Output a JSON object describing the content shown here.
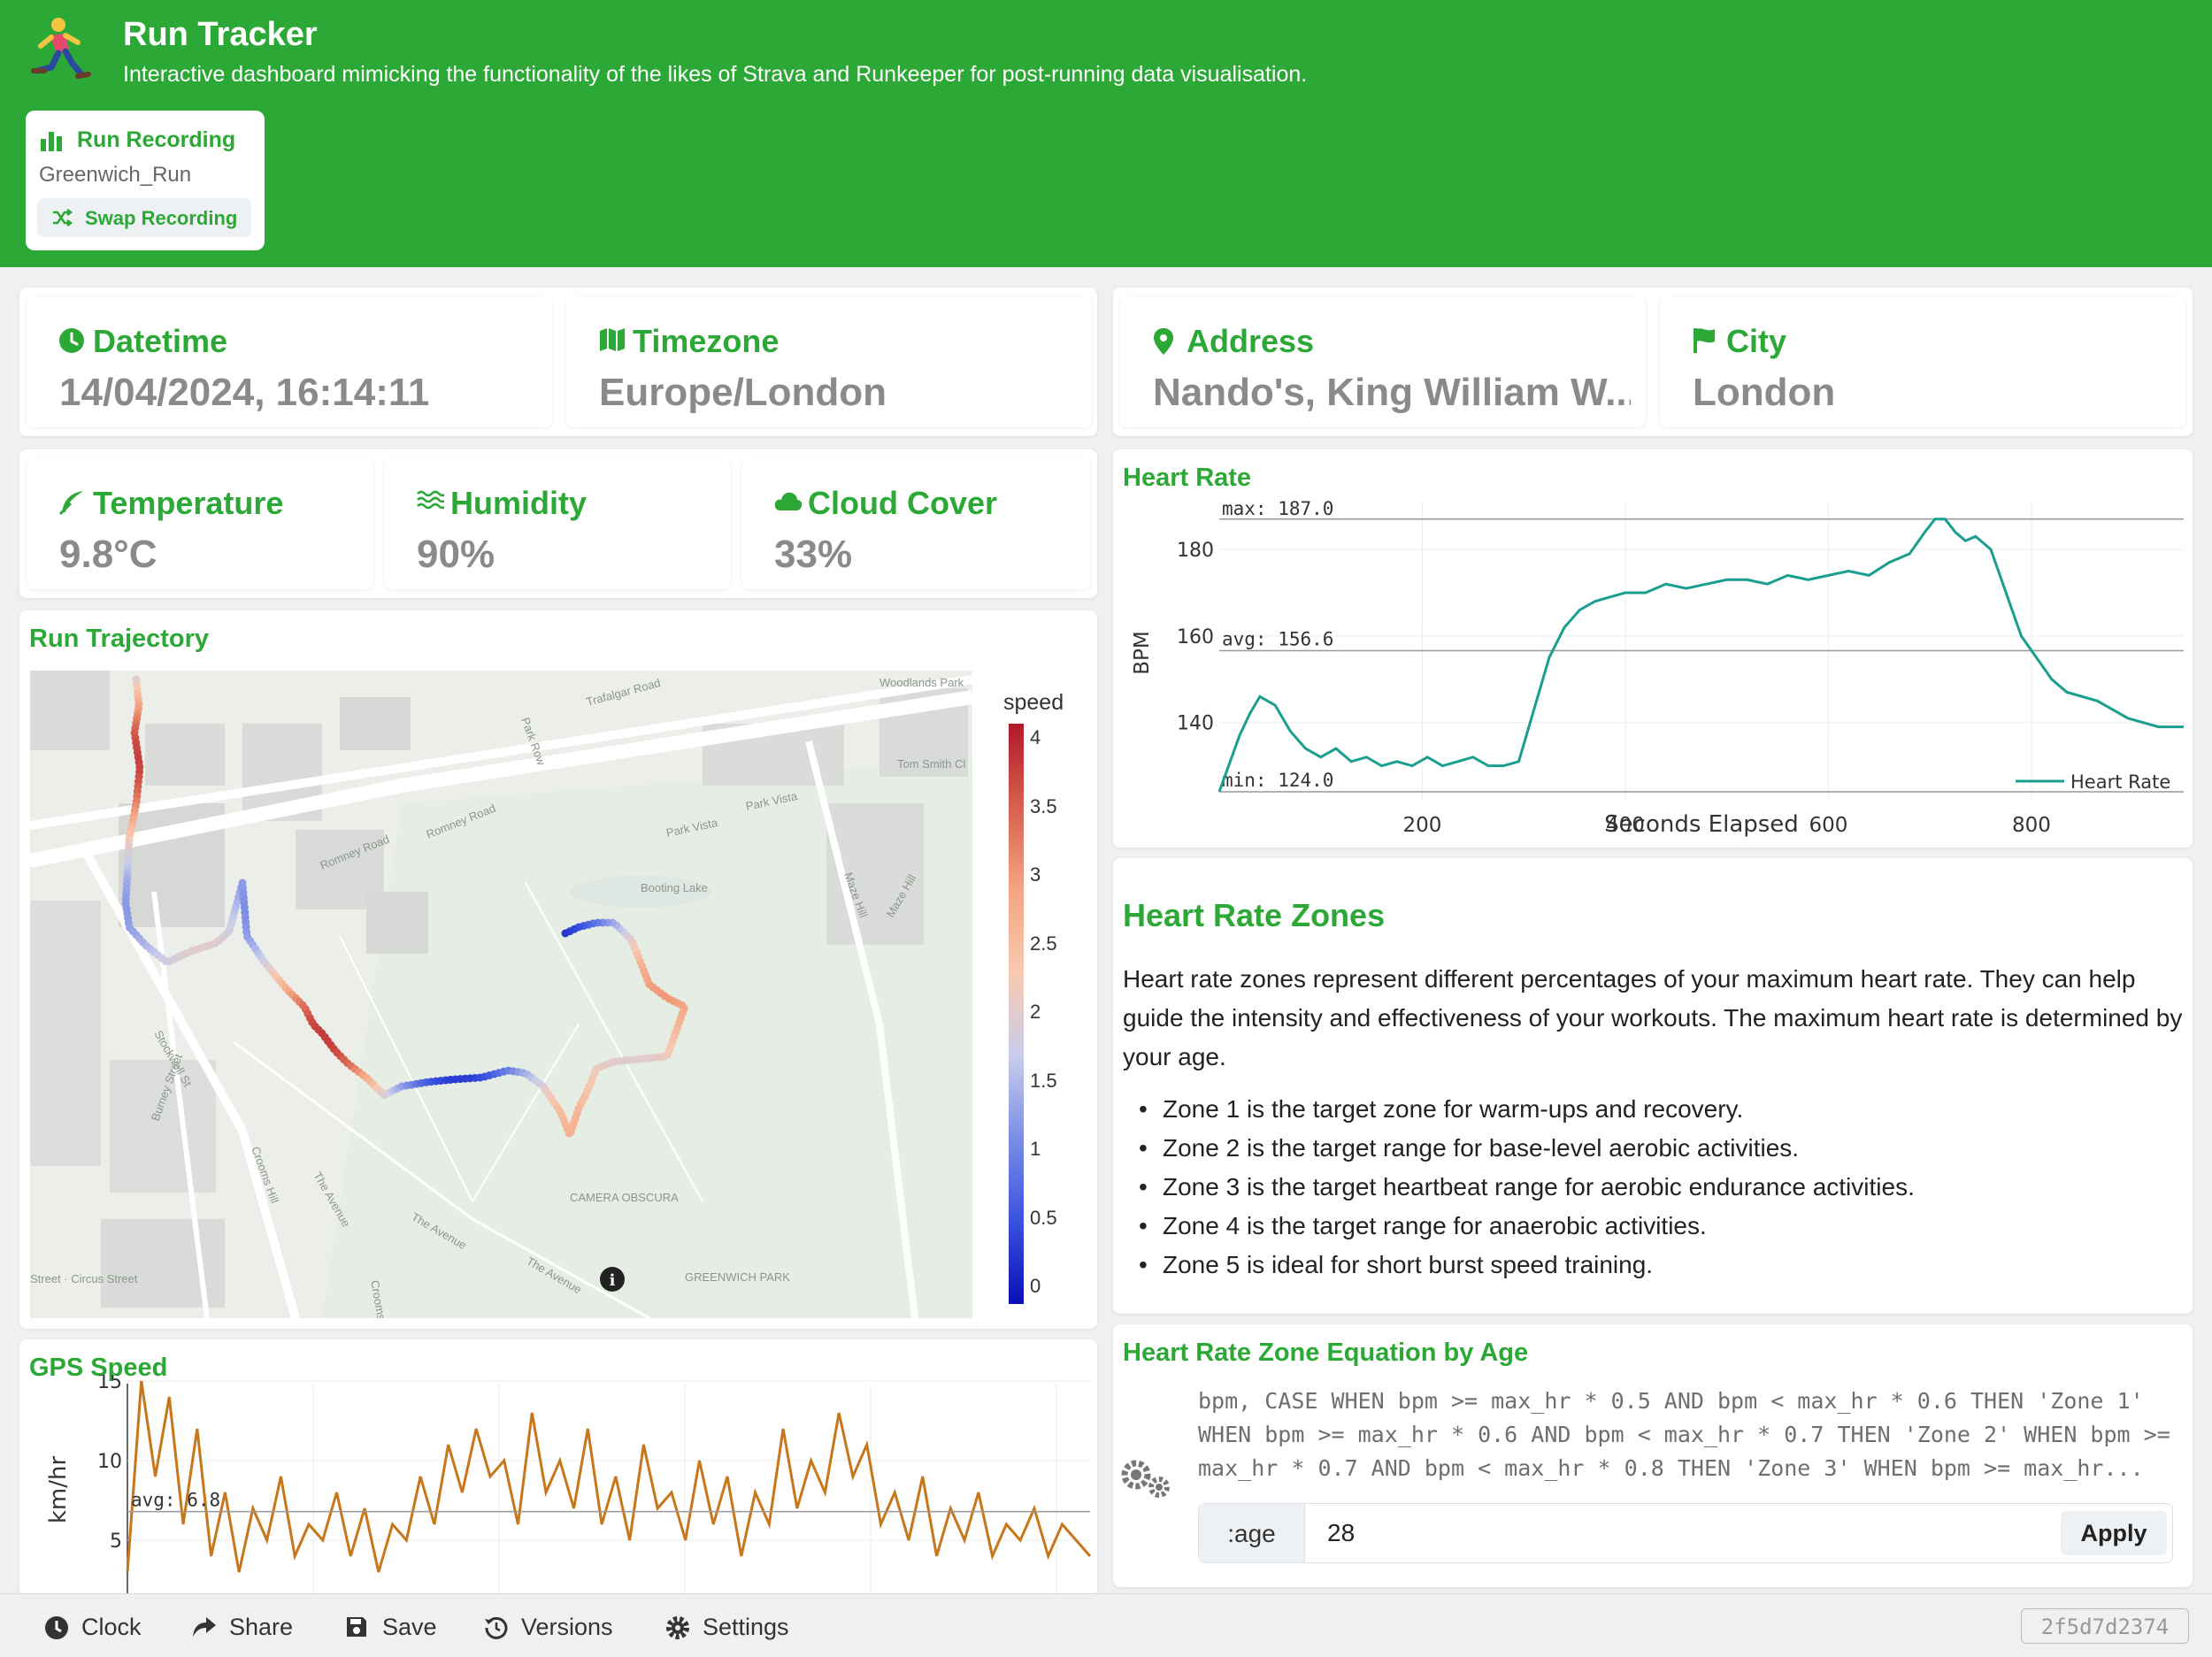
{
  "app": {
    "title": "Run Tracker",
    "subtitle": "Interactive dashboard mimicking the functionality of the likes of Strava and Runkeeper for post-running data visualisation."
  },
  "recording": {
    "title": "Run Recording",
    "name": "Greenwich_Run",
    "swap_label": "Swap Recording"
  },
  "stats": {
    "datetime": {
      "label": "Datetime",
      "value": "14/04/2024, 16:14:11"
    },
    "timezone": {
      "label": "Timezone",
      "value": "Europe/London"
    },
    "address": {
      "label": "Address",
      "value": "Nando's, King William W..."
    },
    "city": {
      "label": "City",
      "value": "London"
    },
    "temperature": {
      "label": "Temperature",
      "value": "9.8°C"
    },
    "humidity": {
      "label": "Humidity",
      "value": "90%"
    },
    "cloud": {
      "label": "Cloud Cover",
      "value": "33%"
    }
  },
  "trajectory": {
    "title": "Run Trajectory",
    "colorbar_title": "speed",
    "colorbar_ticks": [
      "4",
      "3.5",
      "3",
      "2.5",
      "2",
      "1.5",
      "1",
      "0.5",
      "0"
    ],
    "map_labels": [
      "Trafalgar Road",
      "Romney Road",
      "Romney Road",
      "Park Row",
      "Woodlands Park",
      "Tom Smith Cl",
      "Park Vista",
      "Park Vista",
      "Maze Hill",
      "Maze Hill",
      "Booting Lake",
      "CAMERA OBSCURA",
      "GREENWICH PARK",
      "The Avenue",
      "The Avenue",
      "The Avenue",
      "Crooms Hill",
      "Crooms Hill",
      "Burney Street",
      "Stockwell St",
      "Street · Circus Street"
    ]
  },
  "gps": {
    "title": "GPS Speed",
    "ylabel": "km/hr",
    "avg_label": "avg: 6.8",
    "y_ticks": [
      "15",
      "10",
      "5"
    ]
  },
  "heart_rate": {
    "title": "Heart Rate",
    "max_label": "max: 187.0",
    "avg_label": "avg: 156.6",
    "min_label": "min: 124.0",
    "legend": "Heart Rate",
    "line_color": "#1a9e8f"
  },
  "zones": {
    "title": "Heart Rate Zones",
    "intro": "Heart rate zones represent different percentages of your maximum heart rate. They can help guide the intensity and effectiveness of your workouts. The maximum heart rate is determined by your age.",
    "items": [
      "Zone 1 is the target zone for warm-ups and recovery.",
      "Zone 2 is the target range for base-level aerobic activities.",
      "Zone 3 is the target heartbeat range for aerobic endurance activities.",
      "Zone 4 is the target range for anaerobic activities.",
      "Zone 5 is ideal for short burst speed training."
    ]
  },
  "equation": {
    "title": "Heart Rate Zone Equation by Age",
    "sql": "bpm, CASE WHEN bpm >= max_hr * 0.5 AND bpm < max_hr * 0.6 THEN 'Zone 1' WHEN bpm >= max_hr * 0.6 AND bpm < max_hr * 0.7 THEN 'Zone 2' WHEN bpm >= max_hr * 0.7 AND bpm < max_hr * 0.8 THEN 'Zone 3' WHEN bpm >= max_hr...",
    "age_label": ":age",
    "age_value": "28",
    "apply_label": "Apply"
  },
  "footer": {
    "clock": "Clock",
    "share": "Share",
    "save": "Save",
    "versions": "Versions",
    "settings": "Settings",
    "version_hash": "2f5d7d2374"
  },
  "colors": {
    "brand": "#2ca836",
    "speed_line": "#c8761a",
    "hr_line": "#1a9e8f"
  },
  "chart_data": [
    {
      "type": "line",
      "title": "Heart Rate",
      "xlabel": "Seconds Elapsed",
      "ylabel": "BPM",
      "x_ticks": [
        200,
        400,
        600,
        800
      ],
      "y_ticks": [
        140,
        160,
        180
      ],
      "xlim": [
        0,
        950
      ],
      "ylim": [
        124,
        187
      ],
      "series": [
        {
          "name": "Heart Rate",
          "x": [
            0,
            20,
            30,
            40,
            55,
            70,
            85,
            100,
            115,
            130,
            145,
            160,
            175,
            190,
            205,
            220,
            235,
            250,
            265,
            280,
            295,
            310,
            325,
            340,
            355,
            370,
            385,
            400,
            420,
            440,
            460,
            480,
            500,
            520,
            540,
            560,
            580,
            600,
            620,
            640,
            660,
            680,
            695,
            705,
            715,
            725,
            735,
            745,
            760,
            775,
            790,
            805,
            820,
            835,
            850,
            865,
            880,
            895,
            910,
            925,
            940,
            950
          ],
          "y": [
            124,
            137,
            142,
            146,
            144,
            138,
            134,
            132,
            134,
            131,
            132,
            130,
            131,
            130,
            132,
            130,
            131,
            132,
            130,
            130,
            131,
            143,
            155,
            162,
            166,
            168,
            169,
            170,
            170,
            172,
            171,
            172,
            173,
            173,
            172,
            174,
            173,
            174,
            175,
            174,
            177,
            179,
            184,
            187,
            187,
            184,
            182,
            183,
            180,
            170,
            160,
            155,
            150,
            147,
            146,
            145,
            143,
            141,
            140,
            139,
            139,
            139
          ]
        }
      ],
      "annotations": [
        "max: 187.0",
        "avg: 156.6",
        "min: 124.0"
      ]
    },
    {
      "type": "line",
      "title": "GPS Speed",
      "xlabel": "",
      "ylabel": "km/hr",
      "y_ticks": [
        5,
        10,
        15
      ],
      "avg": 6.8,
      "series": [
        {
          "name": "speed",
          "x": [
            0,
            10,
            20,
            30,
            40,
            50,
            60,
            70,
            80,
            90,
            100,
            110,
            120,
            130,
            140,
            150,
            160,
            170,
            180,
            190,
            200,
            210,
            220,
            230,
            240,
            250,
            260,
            270,
            280,
            290,
            300,
            310,
            320,
            330,
            340,
            350,
            360,
            370,
            380,
            390,
            400,
            410,
            420,
            430,
            440,
            450,
            460,
            470,
            480,
            490,
            500,
            510,
            520,
            530,
            540,
            550,
            560,
            570,
            580,
            590,
            600,
            610,
            620,
            630,
            640,
            650,
            660,
            670,
            680,
            690
          ],
          "y": [
            3,
            15,
            9,
            14,
            6,
            12,
            4,
            8,
            3,
            7,
            5,
            9,
            4,
            6,
            5,
            8,
            4,
            7,
            3,
            6,
            5,
            9,
            6,
            11,
            8,
            12,
            9,
            10,
            6,
            13,
            8,
            10,
            7,
            12,
            6,
            9,
            5,
            11,
            7,
            8,
            5,
            10,
            6,
            9,
            4,
            8,
            6,
            12,
            7,
            10,
            8,
            13,
            9,
            11,
            6,
            8,
            5,
            9,
            4,
            7,
            5,
            8,
            4,
            6,
            5,
            7,
            4,
            6,
            5,
            4
          ]
        }
      ],
      "annotations": [
        "avg: 6.8"
      ]
    }
  ]
}
